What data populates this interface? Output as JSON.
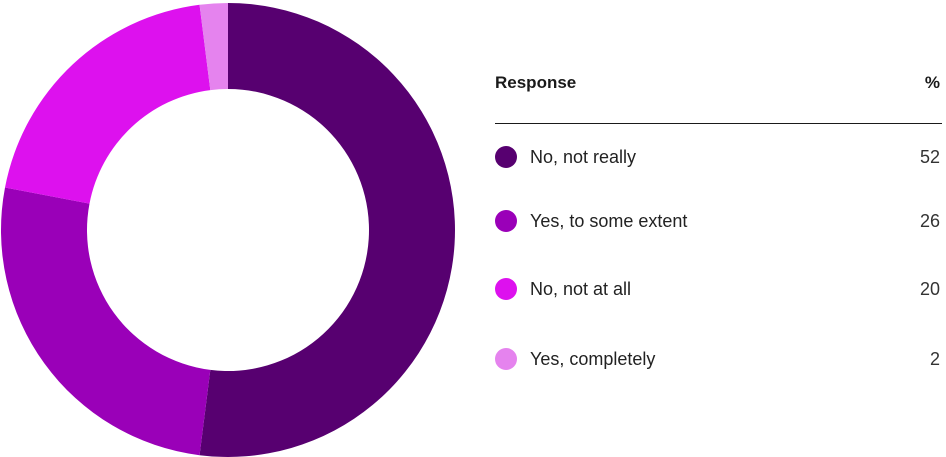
{
  "chart_data": {
    "type": "pie",
    "variant": "donut",
    "columns": {
      "label": "Response",
      "value": "%"
    },
    "slices": [
      {
        "label": "No, not really",
        "value": 52,
        "color": "#570070"
      },
      {
        "label": "Yes, to some extent",
        "value": 26,
        "color": "#9a00b8"
      },
      {
        "label": "No, not at all",
        "value": 20,
        "color": "#dd11ee"
      },
      {
        "label": "Yes, completely",
        "value": 2,
        "color": "#e583ee"
      }
    ],
    "legend_position": "right"
  }
}
